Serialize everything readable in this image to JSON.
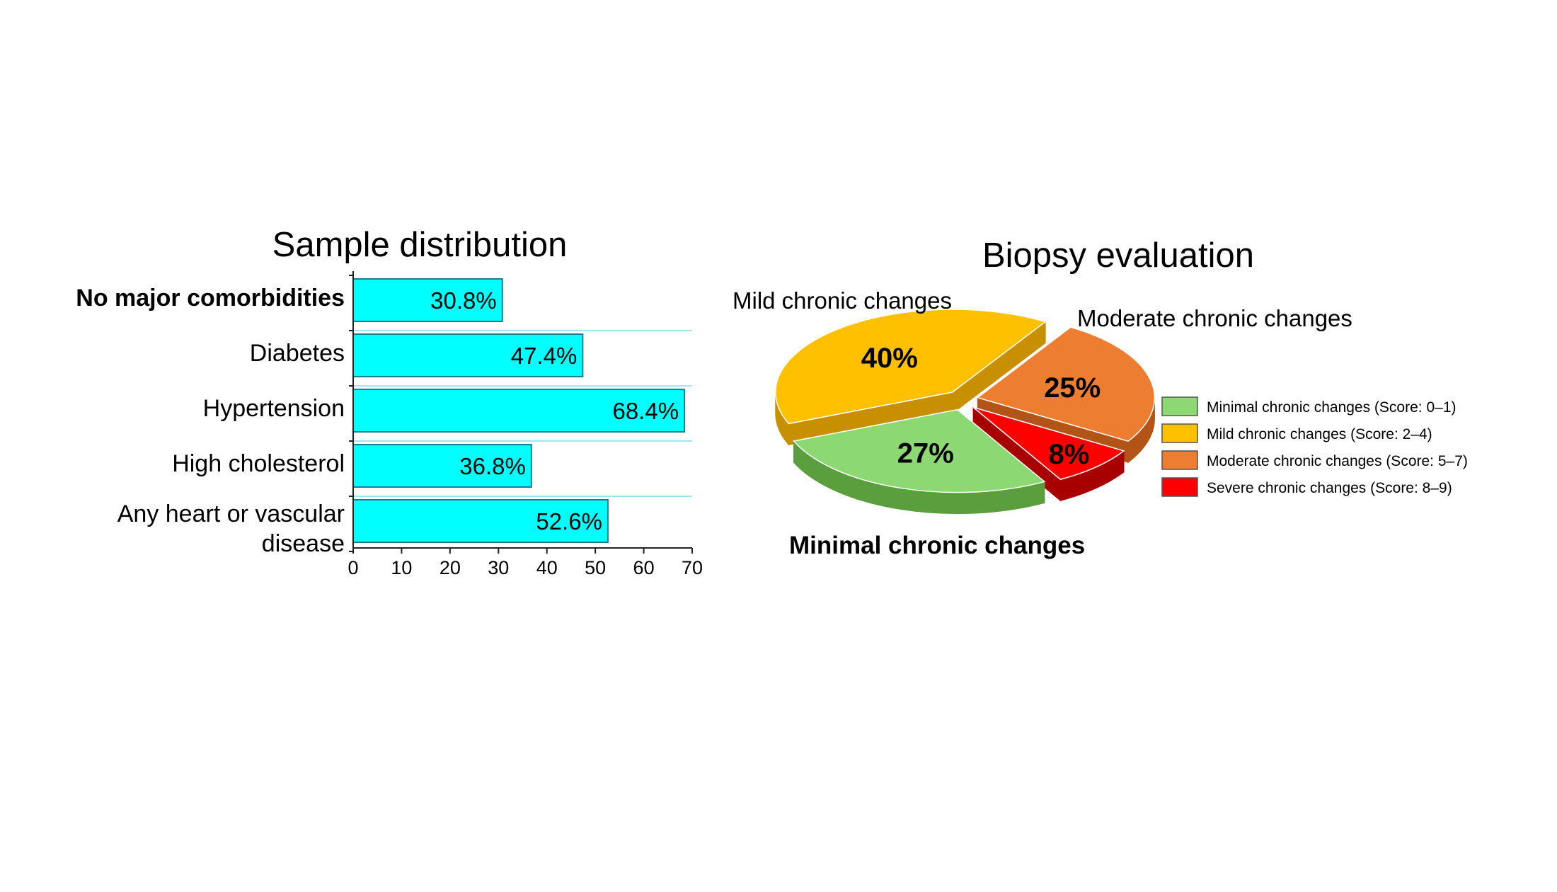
{
  "chart_data": [
    {
      "type": "bar",
      "orientation": "horizontal",
      "title": "Sample distribution",
      "categories": [
        "No major comorbidities",
        "Diabetes",
        "Hypertension",
        "High cholesterol",
        "Any heart or vascular disease"
      ],
      "category_lines": [
        [
          "No major comorbidities"
        ],
        [
          "Diabetes"
        ],
        [
          "Hypertension"
        ],
        [
          "High cholesterol"
        ],
        [
          "Any heart or vascular",
          "disease"
        ]
      ],
      "bold_category": "No major comorbidities",
      "values": [
        30.8,
        47.4,
        68.4,
        36.8,
        52.6
      ],
      "data_labels": [
        "30.8%",
        "47.4%",
        "68.4%",
        "36.8%",
        "52.6%"
      ],
      "xlim": [
        0,
        70
      ],
      "xticks": [
        "0",
        "10",
        "20",
        "30",
        "40",
        "50",
        "60",
        "70"
      ],
      "xlabel": "",
      "ylabel": "",
      "bar_color": "#00ffff",
      "bar_edge_color": "#1a7f94",
      "grid": "horizontal separators"
    },
    {
      "type": "pie",
      "style": "3d-exploded",
      "title": "Biopsy evaluation",
      "slices": [
        {
          "label": "Minimal chronic changes",
          "legend": "Minimal chronic changes (Score: 0–1)",
          "value": 27,
          "data_label": "27%",
          "color": "#8cd873",
          "side_color": "#5a9e3e"
        },
        {
          "label": "Mild chronic changes",
          "legend": "Mild chronic changes (Score: 2–4)",
          "value": 40,
          "data_label": "40%",
          "color": "#ffc000",
          "side_color": "#c88f00"
        },
        {
          "label": "Moderate chronic changes",
          "legend": "Moderate chronic changes (Score: 5–7)",
          "value": 25,
          "data_label": "25%",
          "color": "#ed7d31",
          "side_color": "#b35417"
        },
        {
          "label": "Severe chronic changes",
          "legend": "Severe chronic changes (Score: 8–9)",
          "value": 8,
          "data_label": "8%",
          "color": "#ff0000",
          "side_color": "#a80000"
        }
      ],
      "callouts": [
        "Mild chronic changes",
        "Moderate chronic changes",
        "Minimal chronic changes"
      ],
      "legend_position": "right"
    }
  ]
}
